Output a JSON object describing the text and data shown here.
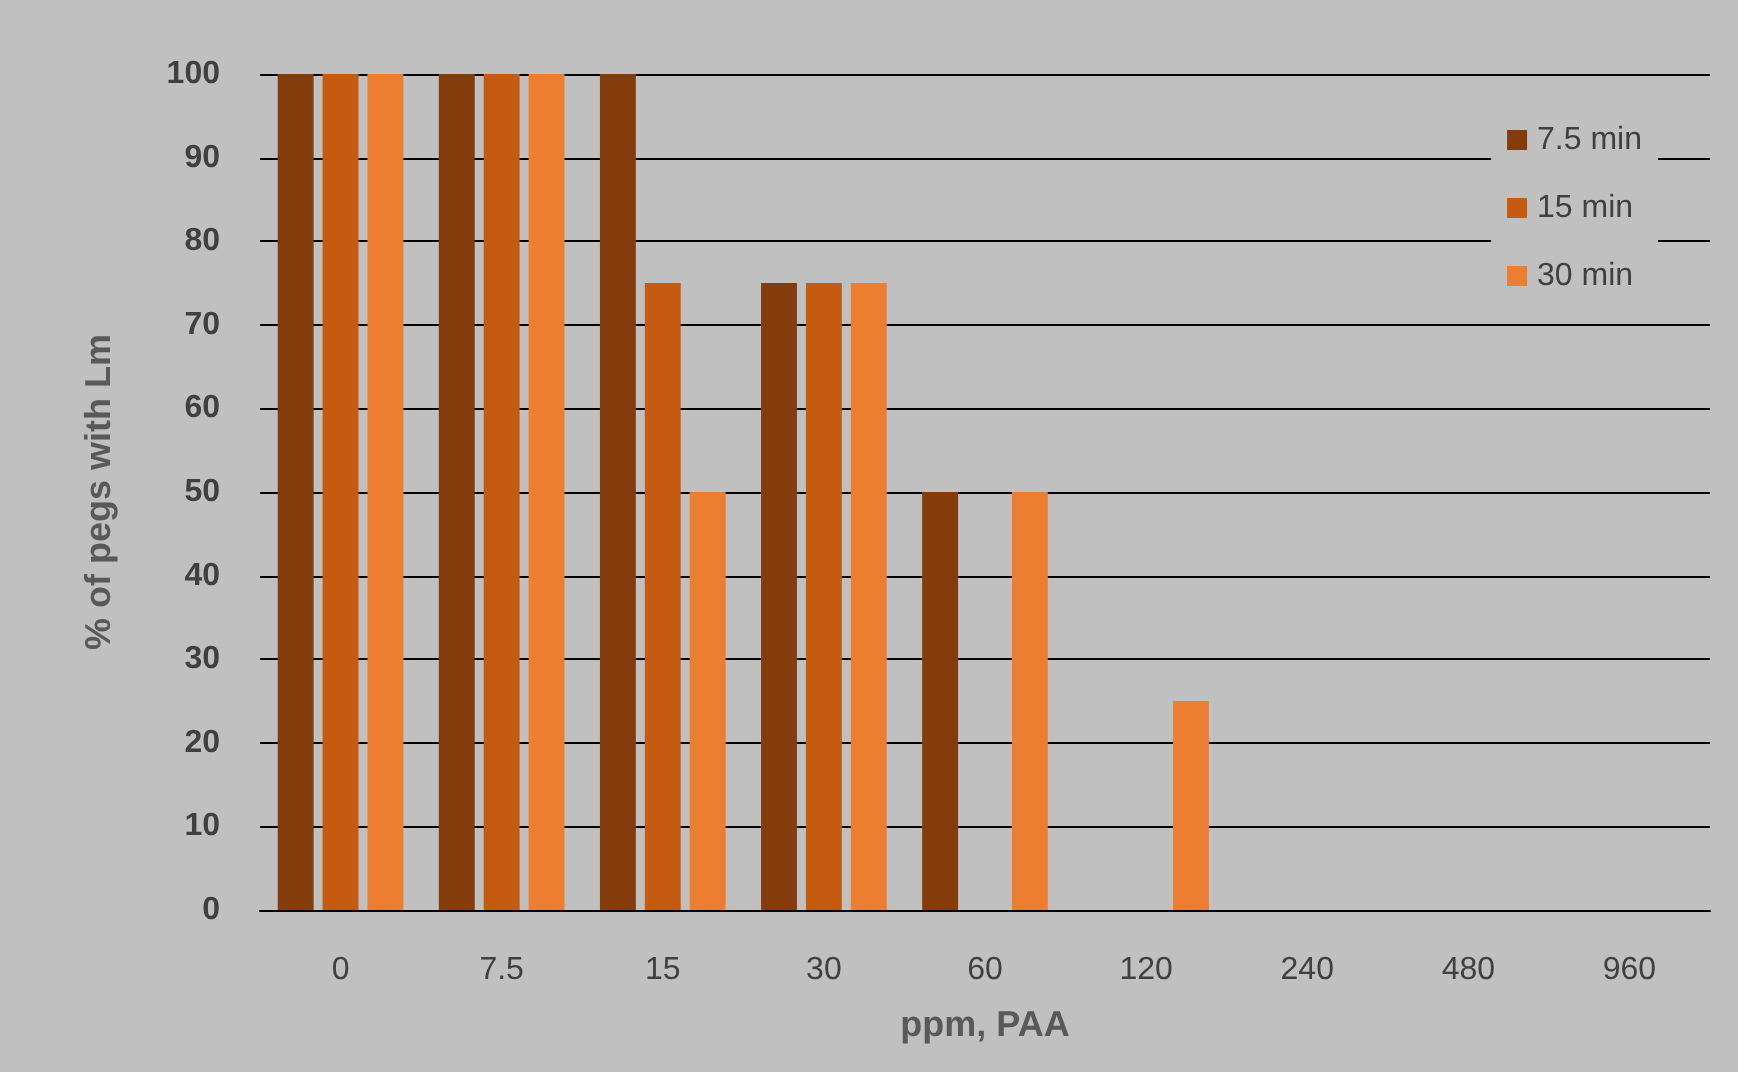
{
  "chart_data": {
    "type": "bar",
    "xlabel": "ppm, PAA",
    "ylabel": "% of pegs with Lm",
    "categories": [
      "0",
      "7.5",
      "15",
      "30",
      "60",
      "120",
      "240",
      "480",
      "960"
    ],
    "series": [
      {
        "name": "7.5 min",
        "color": "#843c0c",
        "values": [
          100,
          100,
          100,
          75,
          50,
          0,
          0,
          0,
          0
        ]
      },
      {
        "name": "15 min",
        "color": "#c55a11",
        "values": [
          100,
          100,
          75,
          75,
          0,
          0,
          0,
          0,
          0
        ]
      },
      {
        "name": "30 min",
        "color": "#ed7d31",
        "values": [
          100,
          100,
          50,
          75,
          50,
          25,
          0,
          0,
          0
        ]
      }
    ],
    "ylim": [
      0,
      100
    ],
    "yticks": [
      0,
      10,
      20,
      30,
      40,
      50,
      60,
      70,
      80,
      90,
      100
    ],
    "grid": "y",
    "legend": "top right"
  }
}
